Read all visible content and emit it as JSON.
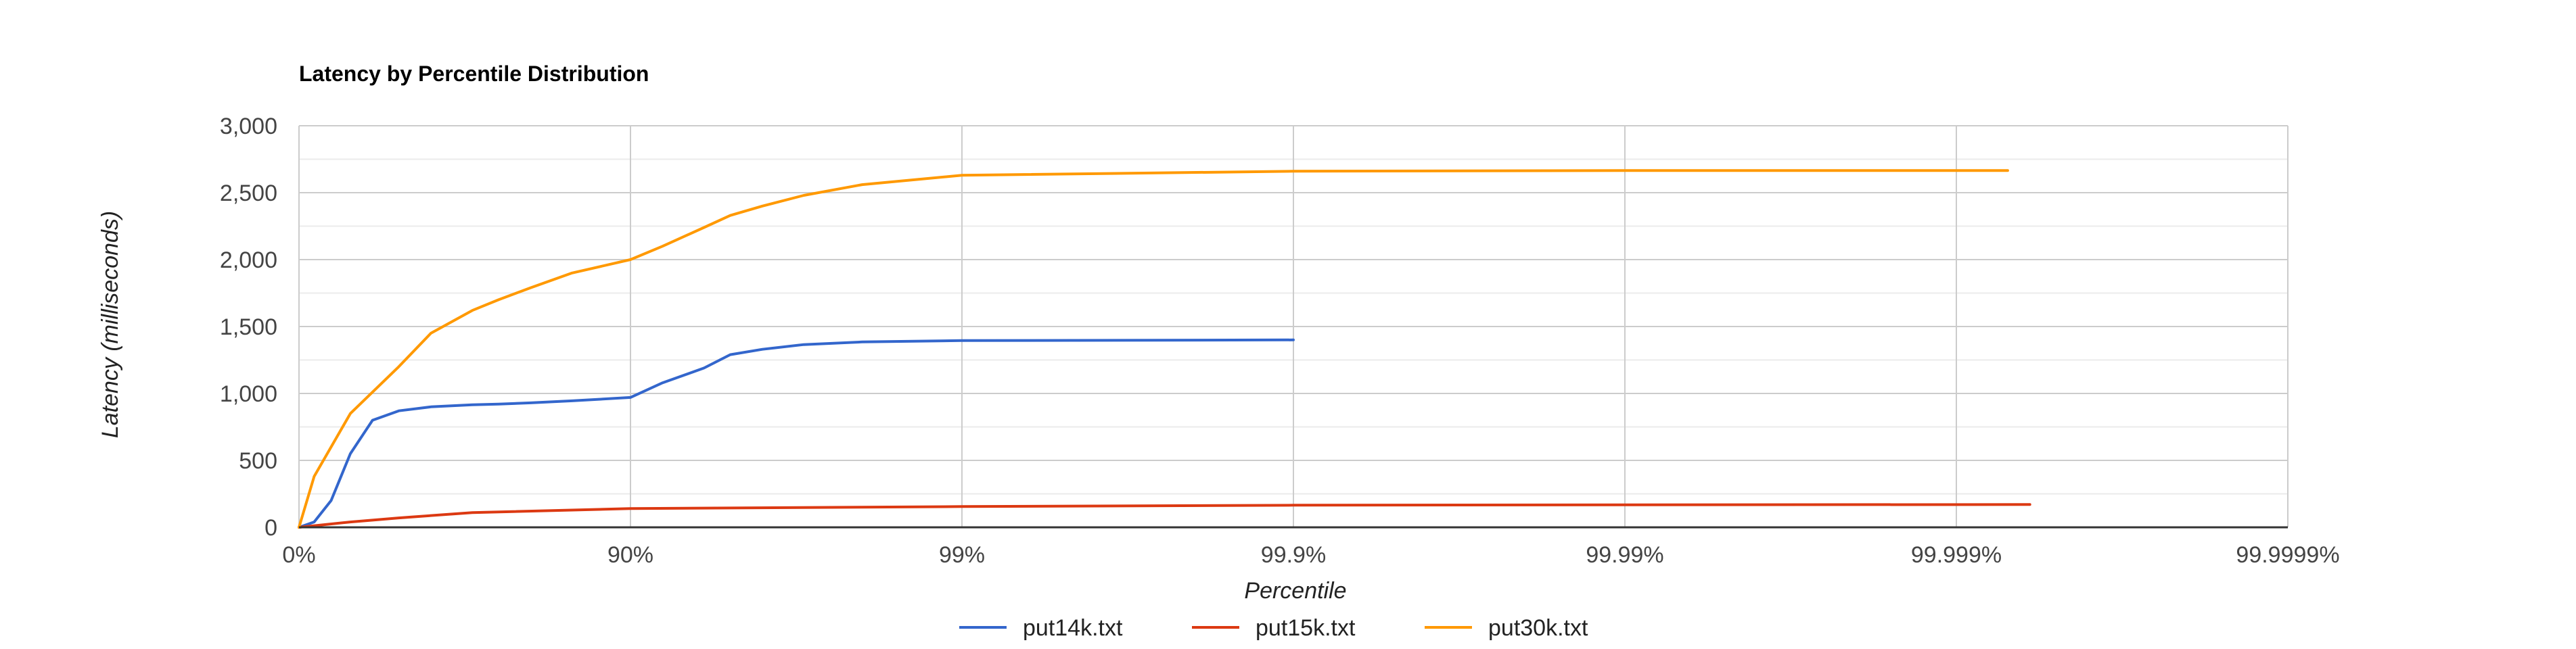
{
  "chart_data": {
    "type": "line",
    "title": "Latency by Percentile Distribution",
    "xlabel": "Percentile",
    "ylabel": "Latency (milliseconds)",
    "x_scale": "log-nines",
    "x_ticks": [
      "0%",
      "90%",
      "99%",
      "99.9%",
      "99.99%",
      "99.999%",
      "99.9999%"
    ],
    "y_ticks": [
      "0",
      "500",
      "1,000",
      "1,500",
      "2,000",
      "2,500",
      "3,000"
    ],
    "ylim": [
      0,
      3000
    ],
    "grid": true,
    "legend_position": "bottom",
    "colors": {
      "put14k": "#3366cc",
      "put15k": "#dc3912",
      "put30k": "#ff9900",
      "grid_major": "#cccccc",
      "grid_minor": "#ebebeb",
      "baseline": "#333333"
    },
    "series": [
      {
        "name": "put14k.txt",
        "color": "#3366cc",
        "x_percentile": [
          "0%",
          "10%",
          "20%",
          "30%",
          "40%",
          "50%",
          "60%",
          "70%",
          "75%",
          "80%",
          "85%",
          "90%",
          "92%",
          "94%",
          "95%",
          "96%",
          "97%",
          "98%",
          "99%",
          "99.9%"
        ],
        "y": [
          0,
          40,
          200,
          550,
          800,
          870,
          900,
          915,
          920,
          930,
          945,
          970,
          1080,
          1190,
          1290,
          1330,
          1365,
          1385,
          1395,
          1400
        ]
      },
      {
        "name": "put15k.txt",
        "color": "#dc3912",
        "x_percentile": [
          "0%",
          "30%",
          "50%",
          "70%",
          "90%",
          "99%",
          "99.9%",
          "99.99%",
          "99.9994%"
        ],
        "y": [
          0,
          40,
          70,
          110,
          140,
          155,
          165,
          168,
          170
        ]
      },
      {
        "name": "put30k.txt",
        "color": "#ff9900",
        "x_percentile": [
          "0%",
          "10%",
          "30%",
          "50%",
          "60%",
          "70%",
          "75%",
          "80%",
          "85%",
          "90%",
          "92%",
          "94%",
          "95%",
          "96%",
          "97%",
          "98%",
          "99%",
          "99.9%",
          "99.99%",
          "99.9993%"
        ],
        "y": [
          0,
          380,
          850,
          1200,
          1450,
          1620,
          1700,
          1790,
          1900,
          2000,
          2100,
          2240,
          2330,
          2400,
          2480,
          2560,
          2630,
          2660,
          2665,
          2665
        ]
      }
    ]
  }
}
